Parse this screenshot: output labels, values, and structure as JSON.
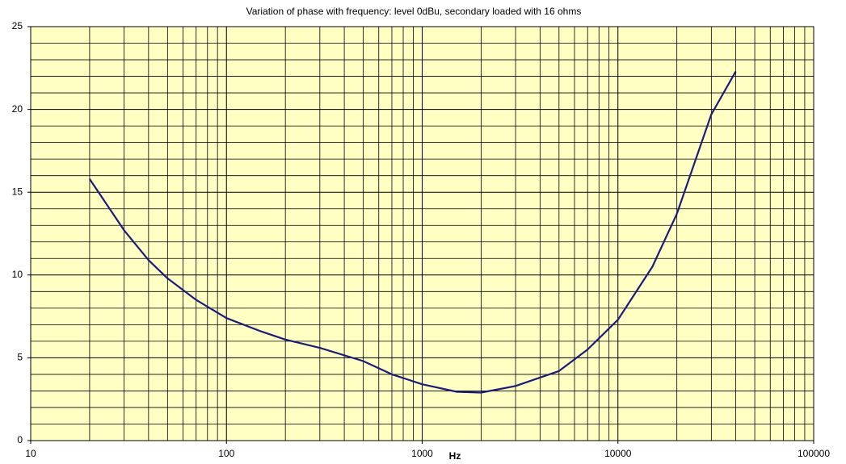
{
  "chart_data": {
    "type": "line",
    "title": "Variation of phase with frequency: level 0dBu, secondary loaded with 16 ohms",
    "xlabel": "Hz",
    "x": [
      20,
      30,
      40,
      50,
      70,
      100,
      150,
      200,
      300,
      500,
      700,
      1000,
      1500,
      2000,
      3000,
      5000,
      7000,
      10000,
      15000,
      20000,
      30000,
      40000
    ],
    "series": [
      {
        "color": "#1c1c78",
        "values": [
          15.8,
          12.7,
          10.9,
          9.8,
          8.5,
          7.4,
          6.6,
          6.1,
          5.6,
          4.8,
          4.0,
          3.4,
          2.95,
          2.9,
          3.3,
          4.2,
          5.5,
          7.3,
          10.5,
          13.7,
          19.7,
          22.3
        ]
      }
    ],
    "xscale": "log",
    "xlim": [
      10,
      100000
    ],
    "xticks": [
      10,
      100,
      1000,
      10000,
      100000
    ],
    "xminor": [
      20,
      30,
      40,
      50,
      60,
      70,
      80,
      90,
      200,
      300,
      400,
      500,
      600,
      700,
      800,
      900,
      2000,
      3000,
      4000,
      5000,
      6000,
      7000,
      8000,
      9000,
      20000,
      30000,
      40000,
      50000,
      60000,
      70000,
      80000,
      90000
    ],
    "ylim": [
      0,
      25
    ],
    "yticks": [
      0,
      5,
      10,
      15,
      20,
      25
    ],
    "yminor": [
      1,
      2,
      3,
      4,
      6,
      7,
      8,
      9,
      11,
      12,
      13,
      14,
      16,
      17,
      18,
      19,
      21,
      22,
      23,
      24
    ],
    "grid": true,
    "background": "#ffffc4"
  }
}
